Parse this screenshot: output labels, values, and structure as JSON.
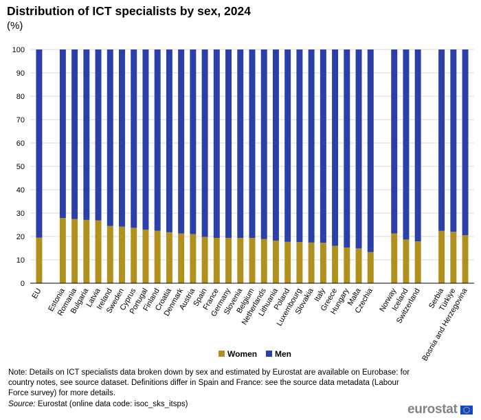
{
  "title": "Distribution of ICT specialists by sex, 2024",
  "subtitle": "(%)",
  "note": "Note: Details on ICT specialists data broken down by sex and estimated by Eurostat are available on Eurobase: for country notes, see source dataset. Definitions differ in Spain and France: see the source data metadata (Labour Force survey) for more details.",
  "source": {
    "label": "Source:",
    "text": " Eurostat (online data code: isoc_sks_itsps)"
  },
  "logo": {
    "text": "eurostat"
  },
  "colors": {
    "women": "#b09120",
    "men": "#2a40a8",
    "grid": "#d9d9d9",
    "axis": "#000000"
  },
  "chart_data": {
    "type": "bar",
    "stacked": true,
    "title": "Distribution of ICT specialists by sex, 2024",
    "subtitle": "(%)",
    "ylim": [
      0,
      100
    ],
    "yticks": [
      0,
      10,
      20,
      30,
      40,
      50,
      60,
      70,
      80,
      90,
      100
    ],
    "grid": true,
    "legend_position": "bottom",
    "categories": [
      "EU",
      "Estonia",
      "Romania",
      "Bulgaria",
      "Latvia",
      "Ireland",
      "Sweden",
      "Cyprus",
      "Portugal",
      "Finland",
      "Croatia",
      "Denmark",
      "Austria",
      "Spain",
      "France",
      "Germany",
      "Slovenia",
      "Belgium",
      "Netherlands",
      "Lithuania",
      "Poland",
      "Luxembourg",
      "Slovakia",
      "Italy",
      "Greece",
      "Hungary",
      "Malta",
      "Czechia",
      "Norway",
      "Iceland",
      "Switzerland",
      "Serbia",
      "Türkiye",
      "Bosnia and Herzegovina"
    ],
    "groups": [
      1,
      27,
      3,
      3
    ],
    "series": [
      {
        "name": "Women",
        "values": [
          19.5,
          27.9,
          27.5,
          27.1,
          26.9,
          24.5,
          24.2,
          23.7,
          22.9,
          22.5,
          21.8,
          21.3,
          21.0,
          19.8,
          19.4,
          19.4,
          19.4,
          19.4,
          18.9,
          18.2,
          17.7,
          17.6,
          17.4,
          17.3,
          16.0,
          15.3,
          14.9,
          13.3,
          21.3,
          18.7,
          17.9,
          22.4,
          22.0,
          20.5
        ]
      },
      {
        "name": "Men",
        "values": [
          80.5,
          72.1,
          72.5,
          72.9,
          73.1,
          75.5,
          75.8,
          76.3,
          77.1,
          77.5,
          78.2,
          78.7,
          79.0,
          80.2,
          80.6,
          80.6,
          80.6,
          80.6,
          81.1,
          81.8,
          82.3,
          82.4,
          82.6,
          82.7,
          84.0,
          84.7,
          85.1,
          86.7,
          78.7,
          81.3,
          82.1,
          77.6,
          78.0,
          79.5
        ]
      }
    ]
  }
}
